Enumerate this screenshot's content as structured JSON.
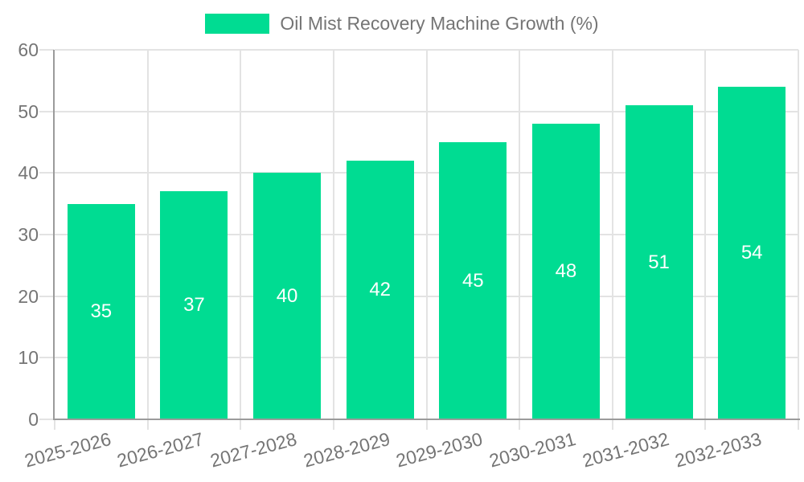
{
  "chart_data": {
    "type": "bar",
    "title": "Oil Mist Recovery Machine Growth (%)",
    "categories": [
      "2025-2026",
      "2026-2027",
      "2027-2028",
      "2028-2029",
      "2029-2030",
      "2030-2031",
      "2031-2032",
      "2032-2033"
    ],
    "values": [
      35,
      37,
      40,
      42,
      45,
      48,
      51,
      54
    ],
    "bar_labels": [
      "35",
      "37",
      "40",
      "42",
      "45",
      "48",
      "51",
      "54"
    ],
    "xlabel": "",
    "ylabel": "",
    "ylim": [
      0,
      60
    ],
    "yticks": [
      0,
      10,
      20,
      30,
      40,
      50,
      60
    ],
    "grid": true,
    "legend_position": "top-center",
    "x_label_rotation_deg": -15,
    "colors": {
      "bar": "#00DC92",
      "bar_label": "#FFFFFF",
      "axis_text": "#757575",
      "axis_line": "#9B9B9B",
      "gridline": "#E3E3E3",
      "background": "#FFFFFF"
    }
  }
}
